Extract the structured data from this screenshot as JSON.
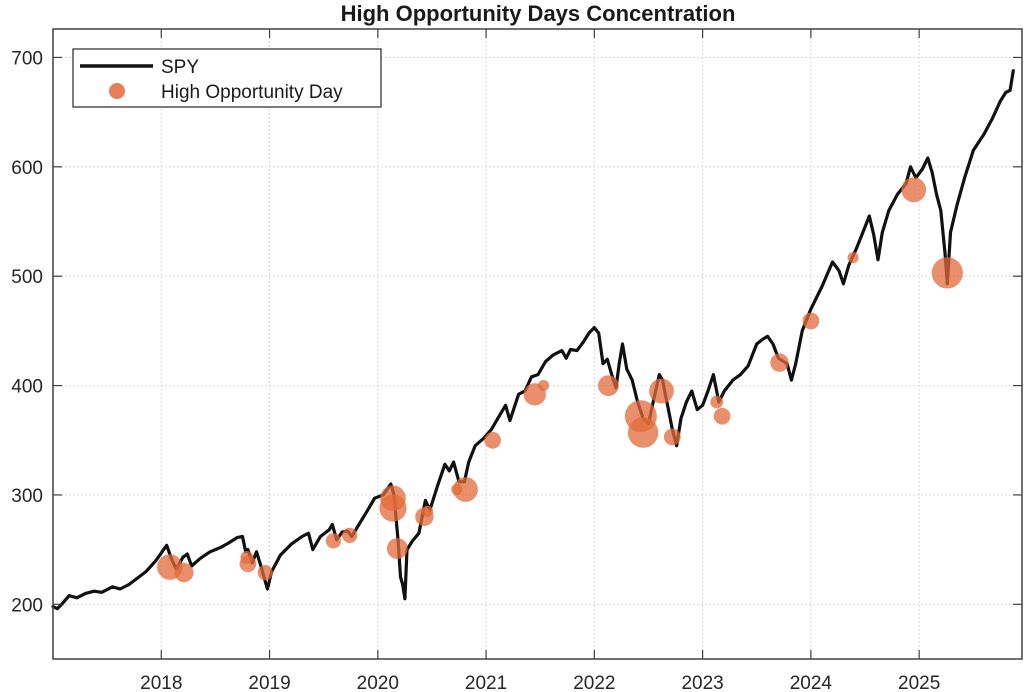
{
  "chart_data": {
    "type": "line",
    "title": "High Opportunity Days Concentration",
    "xlabel": "",
    "ylabel": "",
    "xlim": [
      2017.0,
      2025.95
    ],
    "ylim": [
      150,
      726
    ],
    "x_ticks": [
      2018,
      2019,
      2020,
      2021,
      2022,
      2023,
      2024,
      2025
    ],
    "x_tick_labels": [
      "2018",
      "2019",
      "2020",
      "2021",
      "2022",
      "2023",
      "2024",
      "2025"
    ],
    "y_ticks": [
      200,
      300,
      400,
      500,
      600,
      700
    ],
    "y_tick_labels": [
      "200",
      "300",
      "400",
      "500",
      "600",
      "700"
    ],
    "grid": true,
    "legend": {
      "placement": "top-left",
      "entries": [
        {
          "label": "SPY",
          "kind": "line",
          "color": "#000000"
        },
        {
          "label": "High Opportunity Day",
          "kind": "marker",
          "color": "#e2693a"
        }
      ]
    },
    "series": [
      {
        "name": "SPY",
        "color": "#111111",
        "points": [
          [
            2017.0,
            198
          ],
          [
            2017.04,
            196
          ],
          [
            2017.08,
            200
          ],
          [
            2017.15,
            208
          ],
          [
            2017.22,
            206
          ],
          [
            2017.3,
            210
          ],
          [
            2017.38,
            212
          ],
          [
            2017.45,
            211
          ],
          [
            2017.55,
            216
          ],
          [
            2017.62,
            214
          ],
          [
            2017.7,
            218
          ],
          [
            2017.78,
            224
          ],
          [
            2017.86,
            230
          ],
          [
            2017.95,
            240
          ],
          [
            2018.05,
            254
          ],
          [
            2018.1,
            240
          ],
          [
            2018.14,
            232
          ],
          [
            2018.2,
            243
          ],
          [
            2018.24,
            246
          ],
          [
            2018.28,
            235
          ],
          [
            2018.36,
            242
          ],
          [
            2018.45,
            248
          ],
          [
            2018.55,
            252
          ],
          [
            2018.62,
            256
          ],
          [
            2018.7,
            261
          ],
          [
            2018.75,
            262
          ],
          [
            2018.78,
            248
          ],
          [
            2018.8,
            250
          ],
          [
            2018.84,
            238
          ],
          [
            2018.88,
            248
          ],
          [
            2018.92,
            235
          ],
          [
            2018.98,
            214
          ],
          [
            2019.02,
            230
          ],
          [
            2019.1,
            245
          ],
          [
            2019.2,
            255
          ],
          [
            2019.3,
            262
          ],
          [
            2019.36,
            265
          ],
          [
            2019.4,
            250
          ],
          [
            2019.47,
            262
          ],
          [
            2019.55,
            268
          ],
          [
            2019.58,
            273
          ],
          [
            2019.62,
            259
          ],
          [
            2019.67,
            266
          ],
          [
            2019.72,
            267
          ],
          [
            2019.76,
            262
          ],
          [
            2019.82,
            272
          ],
          [
            2019.9,
            285
          ],
          [
            2019.97,
            297
          ],
          [
            2020.05,
            300
          ],
          [
            2020.12,
            310
          ],
          [
            2020.15,
            300
          ],
          [
            2020.19,
            255
          ],
          [
            2020.21,
            225
          ],
          [
            2020.23,
            218
          ],
          [
            2020.25,
            205
          ],
          [
            2020.27,
            250
          ],
          [
            2020.32,
            258
          ],
          [
            2020.38,
            265
          ],
          [
            2020.44,
            295
          ],
          [
            2020.48,
            286
          ],
          [
            2020.55,
            308
          ],
          [
            2020.62,
            328
          ],
          [
            2020.66,
            322
          ],
          [
            2020.7,
            330
          ],
          [
            2020.75,
            312
          ],
          [
            2020.8,
            312
          ],
          [
            2020.84,
            330
          ],
          [
            2020.9,
            345
          ],
          [
            2020.98,
            352
          ],
          [
            2021.05,
            360
          ],
          [
            2021.12,
            372
          ],
          [
            2021.18,
            382
          ],
          [
            2021.22,
            368
          ],
          [
            2021.3,
            392
          ],
          [
            2021.36,
            395
          ],
          [
            2021.42,
            408
          ],
          [
            2021.48,
            410
          ],
          [
            2021.55,
            422
          ],
          [
            2021.62,
            428
          ],
          [
            2021.7,
            432
          ],
          [
            2021.74,
            425
          ],
          [
            2021.78,
            433
          ],
          [
            2021.84,
            432
          ],
          [
            2021.9,
            440
          ],
          [
            2021.95,
            448
          ],
          [
            2022.0,
            453
          ],
          [
            2022.04,
            448
          ],
          [
            2022.08,
            420
          ],
          [
            2022.12,
            424
          ],
          [
            2022.16,
            410
          ],
          [
            2022.2,
            398
          ],
          [
            2022.23,
            420
          ],
          [
            2022.26,
            438
          ],
          [
            2022.3,
            415
          ],
          [
            2022.35,
            405
          ],
          [
            2022.4,
            385
          ],
          [
            2022.45,
            370
          ],
          [
            2022.5,
            365
          ],
          [
            2022.55,
            388
          ],
          [
            2022.6,
            410
          ],
          [
            2022.63,
            405
          ],
          [
            2022.68,
            380
          ],
          [
            2022.72,
            360
          ],
          [
            2022.76,
            345
          ],
          [
            2022.8,
            370
          ],
          [
            2022.85,
            385
          ],
          [
            2022.9,
            395
          ],
          [
            2022.95,
            378
          ],
          [
            2023.0,
            382
          ],
          [
            2023.05,
            395
          ],
          [
            2023.1,
            410
          ],
          [
            2023.15,
            385
          ],
          [
            2023.2,
            395
          ],
          [
            2023.28,
            405
          ],
          [
            2023.35,
            410
          ],
          [
            2023.42,
            418
          ],
          [
            2023.5,
            438
          ],
          [
            2023.55,
            442
          ],
          [
            2023.6,
            445
          ],
          [
            2023.65,
            438
          ],
          [
            2023.7,
            425
          ],
          [
            2023.78,
            420
          ],
          [
            2023.82,
            405
          ],
          [
            2023.86,
            420
          ],
          [
            2023.92,
            450
          ],
          [
            2024.0,
            470
          ],
          [
            2024.1,
            490
          ],
          [
            2024.2,
            513
          ],
          [
            2024.26,
            505
          ],
          [
            2024.3,
            493
          ],
          [
            2024.35,
            510
          ],
          [
            2024.42,
            525
          ],
          [
            2024.5,
            545
          ],
          [
            2024.54,
            555
          ],
          [
            2024.58,
            538
          ],
          [
            2024.62,
            515
          ],
          [
            2024.66,
            540
          ],
          [
            2024.72,
            560
          ],
          [
            2024.8,
            575
          ],
          [
            2024.88,
            585
          ],
          [
            2024.92,
            600
          ],
          [
            2024.97,
            590
          ],
          [
            2025.03,
            598
          ],
          [
            2025.08,
            608
          ],
          [
            2025.12,
            595
          ],
          [
            2025.16,
            575
          ],
          [
            2025.2,
            560
          ],
          [
            2025.24,
            520
          ],
          [
            2025.26,
            493
          ],
          [
            2025.29,
            540
          ],
          [
            2025.35,
            565
          ],
          [
            2025.42,
            590
          ],
          [
            2025.5,
            615
          ],
          [
            2025.6,
            630
          ],
          [
            2025.68,
            645
          ],
          [
            2025.75,
            660
          ],
          [
            2025.8,
            668
          ],
          [
            2025.84,
            670
          ],
          [
            2025.87,
            688
          ]
        ]
      },
      {
        "name": "High Opportunity Day",
        "color": "#e2693a",
        "marker_opacity": 0.75,
        "points": [
          {
            "x": 2018.08,
            "y": 234,
            "weight": 1.6
          },
          {
            "x": 2018.21,
            "y": 229,
            "weight": 1.2
          },
          {
            "x": 2018.79,
            "y": 243,
            "weight": 0.8
          },
          {
            "x": 2018.8,
            "y": 237,
            "weight": 1.05
          },
          {
            "x": 2018.96,
            "y": 229,
            "weight": 0.95
          },
          {
            "x": 2019.59,
            "y": 258,
            "weight": 0.95
          },
          {
            "x": 2019.74,
            "y": 263,
            "weight": 0.95
          },
          {
            "x": 2020.14,
            "y": 297,
            "weight": 1.6
          },
          {
            "x": 2020.14,
            "y": 288,
            "weight": 1.7
          },
          {
            "x": 2020.18,
            "y": 251,
            "weight": 1.3
          },
          {
            "x": 2020.43,
            "y": 280,
            "weight": 1.15
          },
          {
            "x": 2020.46,
            "y": 285,
            "weight": 0.7
          },
          {
            "x": 2020.73,
            "y": 305,
            "weight": 0.7
          },
          {
            "x": 2020.81,
            "y": 305,
            "weight": 1.55
          },
          {
            "x": 2021.06,
            "y": 350,
            "weight": 1.05
          },
          {
            "x": 2021.45,
            "y": 392,
            "weight": 1.4
          },
          {
            "x": 2021.53,
            "y": 400,
            "weight": 0.7
          },
          {
            "x": 2022.13,
            "y": 400,
            "weight": 1.3
          },
          {
            "x": 2022.43,
            "y": 372,
            "weight": 2.0
          },
          {
            "x": 2022.45,
            "y": 357,
            "weight": 1.9
          },
          {
            "x": 2022.62,
            "y": 395,
            "weight": 1.55
          },
          {
            "x": 2022.72,
            "y": 353,
            "weight": 1.05
          },
          {
            "x": 2023.13,
            "y": 385,
            "weight": 0.8
          },
          {
            "x": 2023.18,
            "y": 372,
            "weight": 1.05
          },
          {
            "x": 2023.71,
            "y": 421,
            "weight": 1.15
          },
          {
            "x": 2024.0,
            "y": 459,
            "weight": 1.05
          },
          {
            "x": 2024.39,
            "y": 517,
            "weight": 0.7
          },
          {
            "x": 2024.95,
            "y": 579,
            "weight": 1.55
          },
          {
            "x": 2025.26,
            "y": 503,
            "weight": 1.95
          }
        ]
      }
    ]
  }
}
